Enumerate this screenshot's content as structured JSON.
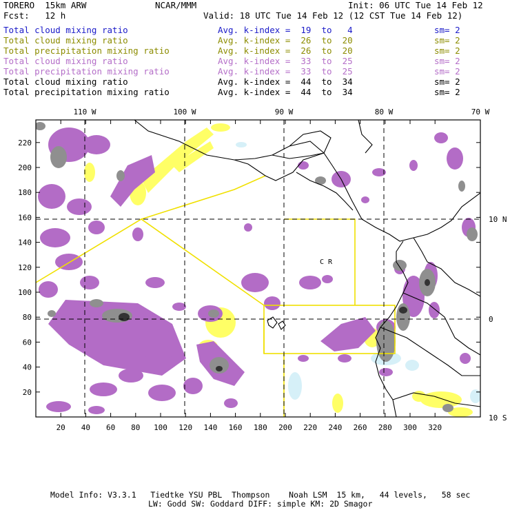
{
  "header": {
    "model": "TORERO  15km ARW",
    "org": "NCAR/MMM",
    "init": "Init: 06 UTC Tue 14 Feb 12",
    "fcst": "Fcst:   12 h",
    "valid": "Valid: 18 UTC Tue 14 Feb 12 (12 CST Tue 14 Feb 12)"
  },
  "legend": [
    {
      "field": "Total cloud mixing ratio",
      "kindex": "Avg. k-index =  19  to   4",
      "sm": "sm= 2",
      "color": "#1a1ac8"
    },
    {
      "field": "Total cloud mixing ratio",
      "kindex": "Avg. k-index =  26  to  20",
      "sm": "sm= 2",
      "color": "#8c8c00"
    },
    {
      "field": "Total precipitation mixing ratio",
      "kindex": "Avg. k-index =  26  to  20",
      "sm": "sm= 2",
      "color": "#8c8c00"
    },
    {
      "field": "Total cloud mixing ratio",
      "kindex": "Avg. k-index =  33  to  25",
      "sm": "sm= 2",
      "color": "#b46ec8"
    },
    {
      "field": "Total precipitation mixing ratio",
      "kindex": "Avg. k-index =  33  to  25",
      "sm": "sm= 2",
      "color": "#b46ec8"
    },
    {
      "field": "Total cloud mixing ratio",
      "kindex": "Avg. k-index =  44  to  34",
      "sm": "sm= 2",
      "color": "#000000"
    },
    {
      "field": "Total precipitation mixing ratio",
      "kindex": "Avg. k-index =  44  to  34",
      "sm": "sm= 2",
      "color": "#000000"
    }
  ],
  "axes": {
    "bottom_ticks": [
      "20",
      "40",
      "60",
      "80",
      "100",
      "120",
      "140",
      "160",
      "180",
      "200",
      "220",
      "240",
      "260",
      "280",
      "300",
      "320"
    ],
    "left_ticks": [
      "20",
      "40",
      "60",
      "80",
      "100",
      "120",
      "140",
      "160",
      "180",
      "200",
      "220"
    ],
    "top_lon": [
      "110 W",
      "100 W",
      "90 W",
      "80 W",
      "70 W"
    ],
    "right_lat": [
      "10 N",
      "0",
      "10 S"
    ]
  },
  "map_labels": {
    "cr": "C R"
  },
  "footer": {
    "line1": "Model Info: V3.3.1   Tiedtke YSU PBL  Thompson    Noah LSM  15 km,   44 levels,   58 sec",
    "line2": "LW: Godd SW: Goddard DIFF: simple KM: 2D Smagor"
  },
  "colors": {
    "precip": "#b36cc6",
    "cloud": "#ffff66",
    "heavy": "#8f8f8f",
    "core": "#333333",
    "light": "#d6f0f8",
    "box": "#f0e000"
  }
}
